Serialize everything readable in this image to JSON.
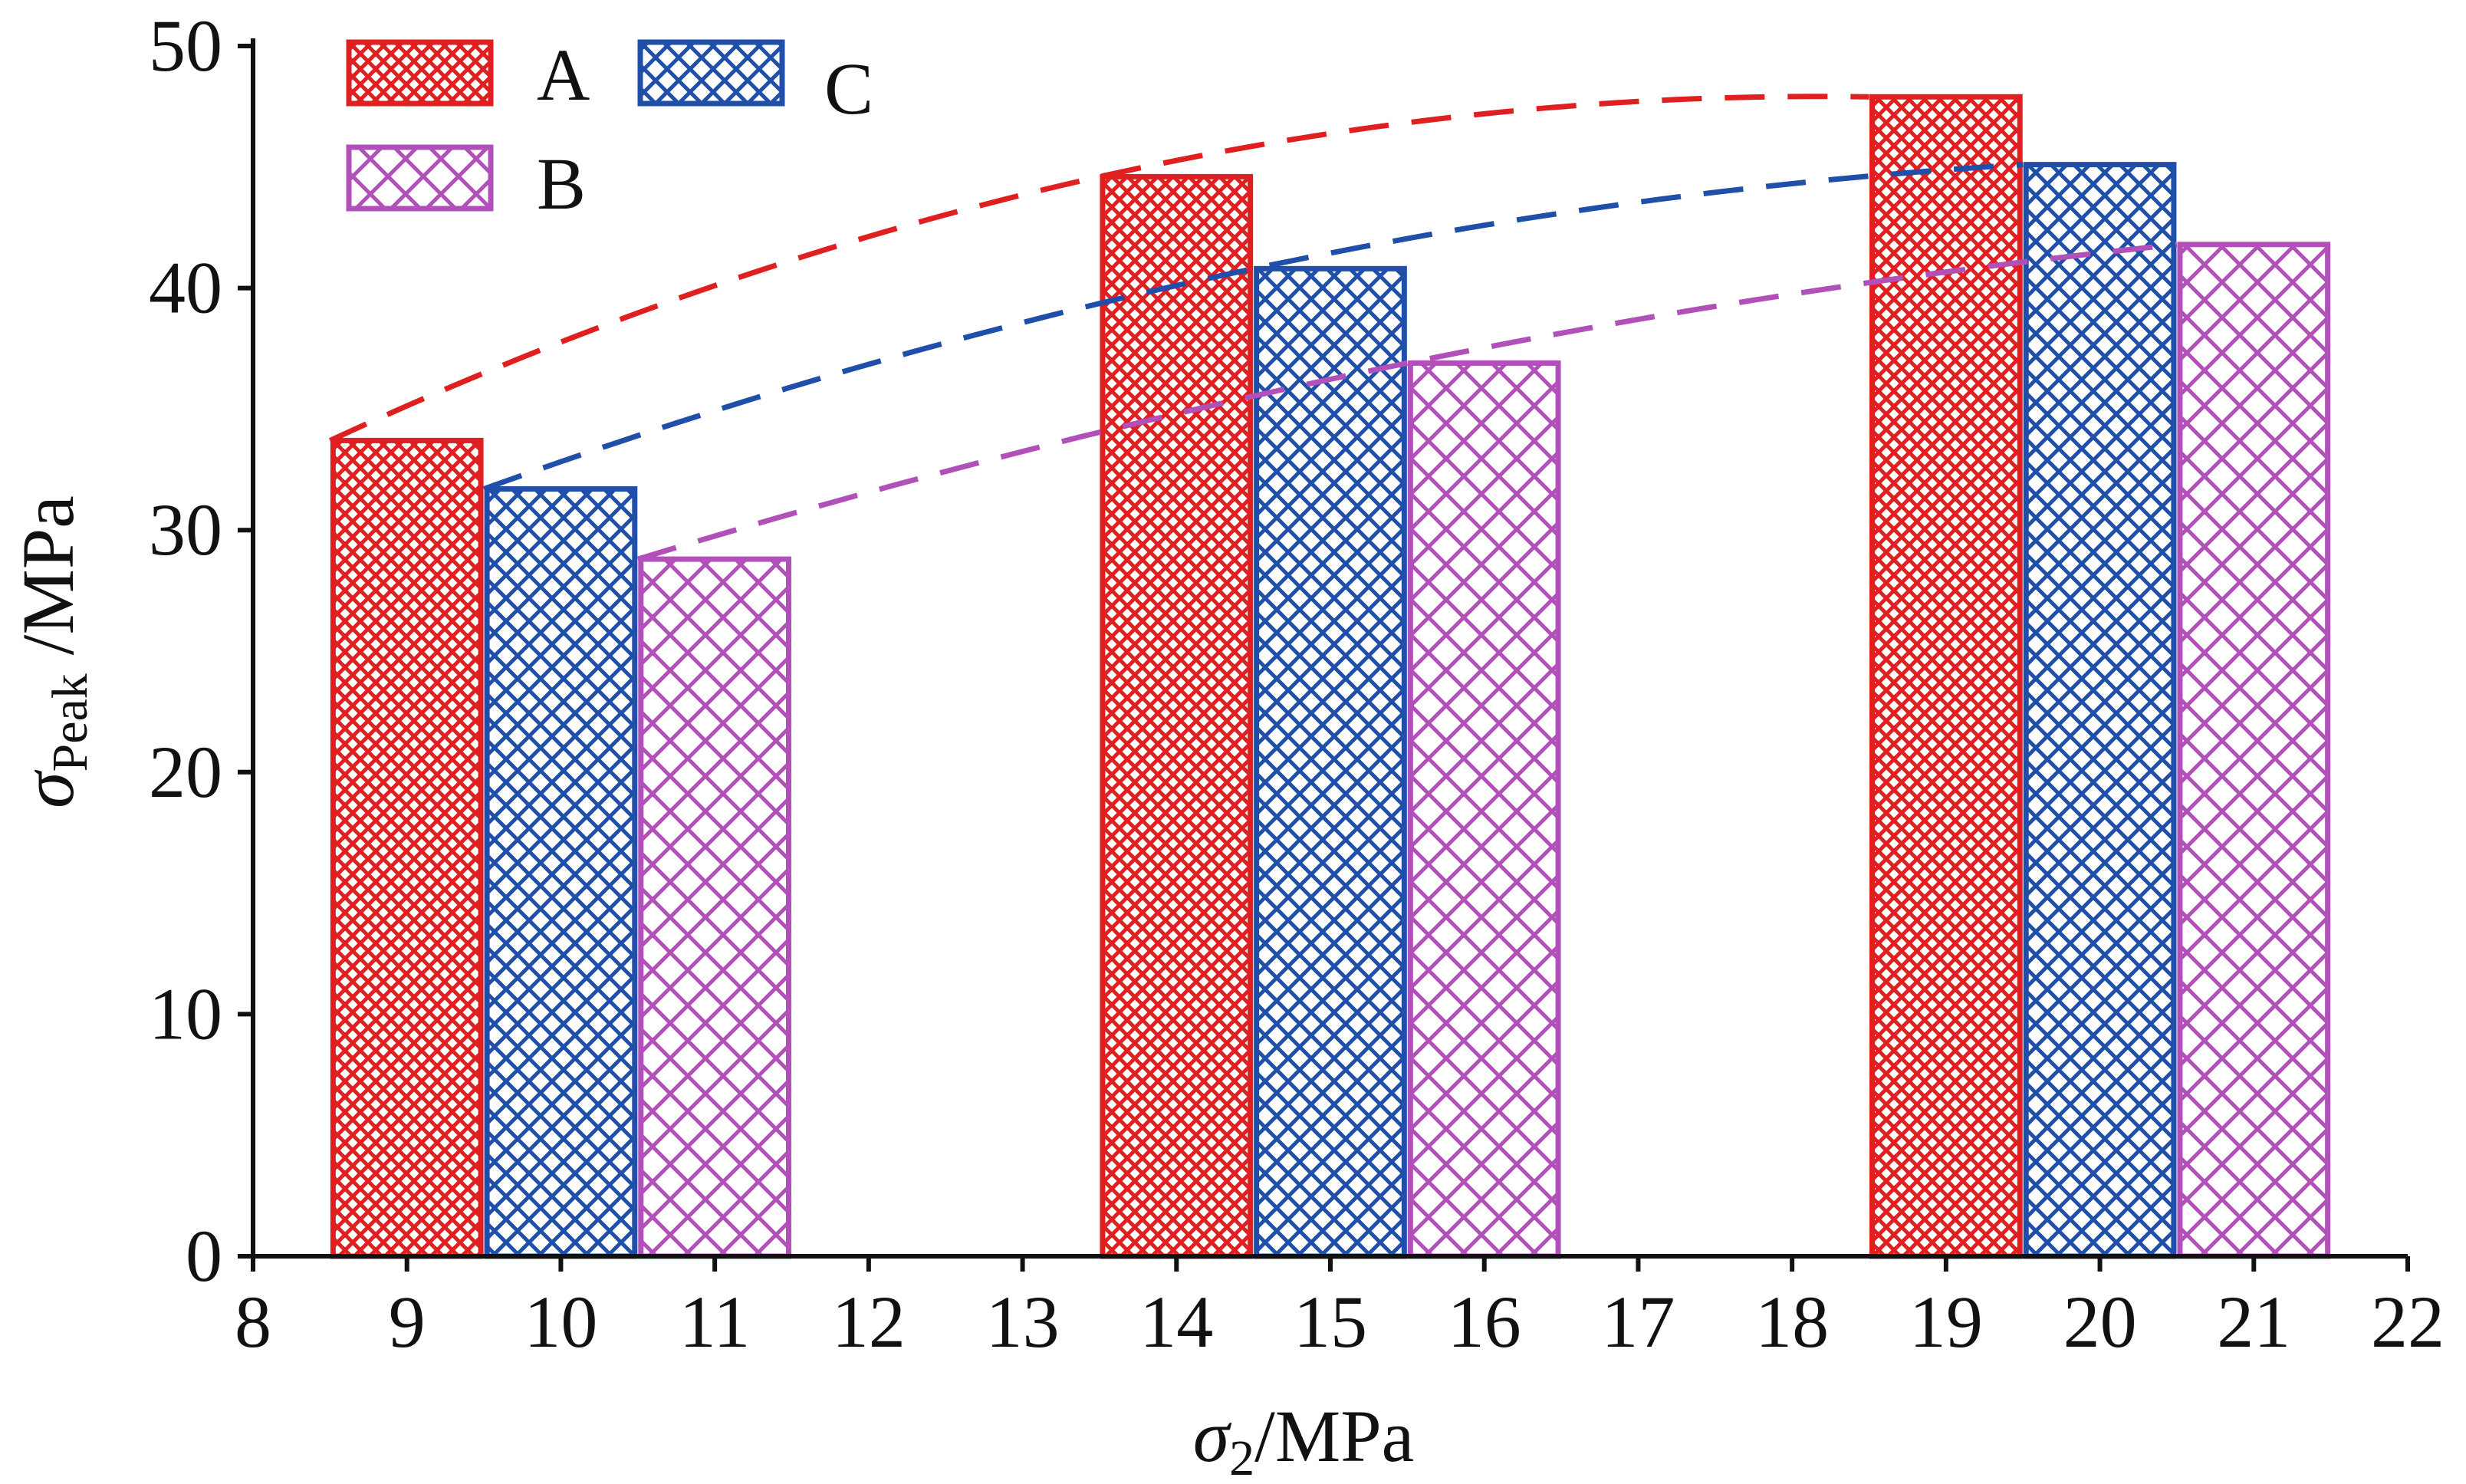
{
  "chart_data": {
    "type": "bar",
    "x_ticks": [
      "8",
      "9",
      "10",
      "11",
      "12",
      "13",
      "14",
      "15",
      "16",
      "17",
      "18",
      "19",
      "20",
      "21",
      "22"
    ],
    "xlim": [
      8,
      22
    ],
    "ylim": [
      0,
      50
    ],
    "y_ticks": [
      "0",
      "10",
      "20",
      "30",
      "40",
      "50"
    ],
    "xlabel": {
      "symbol": "σ",
      "sub": "2",
      "unit": "/MPa"
    },
    "ylabel": {
      "symbol": "σ",
      "sub": "Peak",
      "unit": "/MPa"
    },
    "grid": false,
    "legend_position": "top-left",
    "series": [
      {
        "name": "A",
        "color": "#e02020",
        "pattern": "fine-crosshatch",
        "x": [
          9,
          14,
          19
        ],
        "values": [
          33.7,
          44.6,
          47.9
        ]
      },
      {
        "name": "C",
        "color": "#1f4fa8",
        "pattern": "medium-crosshatch",
        "x": [
          10,
          15,
          20
        ],
        "values": [
          31.7,
          40.8,
          45.1
        ]
      },
      {
        "name": "B",
        "color": "#b050b8",
        "pattern": "coarse-crosshatch",
        "x": [
          11,
          16,
          21
        ],
        "values": [
          28.8,
          36.9,
          41.8
        ]
      }
    ],
    "trend_lines": [
      {
        "series": "A",
        "style": "dashed",
        "points": [
          [
            8.5,
            33.7
          ],
          [
            13.5,
            44.6
          ],
          [
            18.5,
            47.9
          ]
        ]
      },
      {
        "series": "C",
        "style": "dashed",
        "points": [
          [
            9.5,
            31.7
          ],
          [
            14.5,
            40.8
          ],
          [
            19.5,
            45.1
          ]
        ]
      },
      {
        "series": "B",
        "style": "dashed",
        "points": [
          [
            10.5,
            28.8
          ],
          [
            15.5,
            36.9
          ],
          [
            20.5,
            41.8
          ]
        ]
      }
    ]
  }
}
